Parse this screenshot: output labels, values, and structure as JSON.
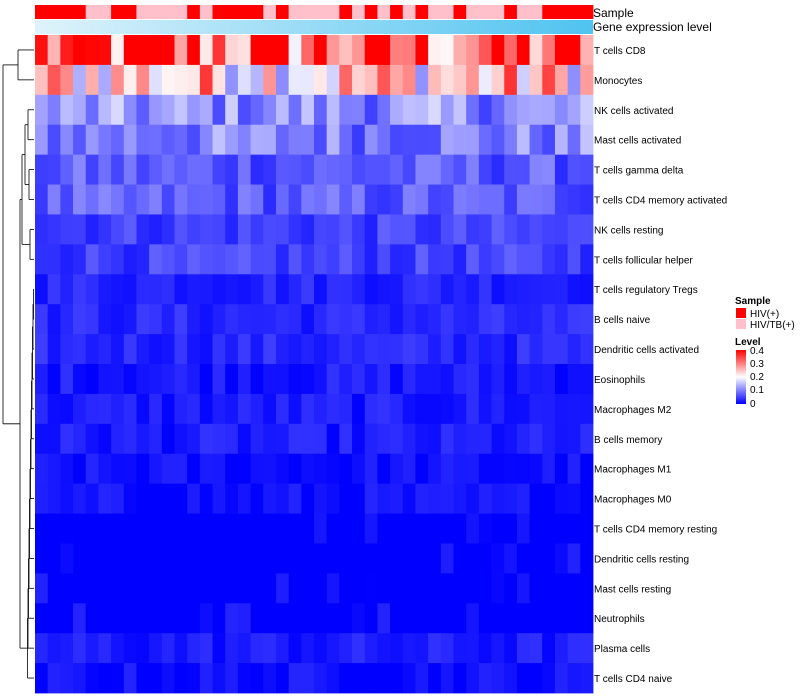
{
  "chart_data": {
    "type": "heatmap",
    "title": "",
    "column_annotations": {
      "sample_label": "Sample",
      "expression_label": "Gene expression level"
    },
    "rows": [
      "T cells CD8",
      "Monocytes",
      "NK cells activated",
      "Mast cells activated",
      "T cells gamma delta",
      "T cells CD4 memory activated",
      "NK cells resting",
      "T cells follicular helper",
      "T cells regulatory  Tregs",
      "B cells naive",
      "Dendritic cells activated",
      "Eosinophils",
      "Macrophages M2",
      "B cells memory",
      "Macrophages M1",
      "Macrophages M0",
      "T cells CD4 memory resting",
      "Dendritic cells resting",
      "Mast cells resting",
      "Neutrophils",
      "Plasma cells",
      "T cells CD4 naive"
    ],
    "row_means": [
      0.33,
      0.24,
      0.11,
      0.1,
      0.07,
      0.07,
      0.05,
      0.05,
      0.03,
      0.03,
      0.03,
      0.02,
      0.02,
      0.02,
      0.01,
      0.01,
      0.005,
      0.004,
      0.002,
      0.0,
      0.02,
      0.01
    ],
    "n_samples": 44,
    "sample_groups": [
      "HIV(+)",
      "HIV(+)",
      "HIV(+)",
      "HIV(+)",
      "HIV/TB(+)",
      "HIV/TB(+)",
      "HIV(+)",
      "HIV(+)",
      "HIV/TB(+)",
      "HIV/TB(+)",
      "HIV/TB(+)",
      "HIV/TB(+)",
      "HIV(+)",
      "HIV/TB(+)",
      "HIV(+)",
      "HIV(+)",
      "HIV(+)",
      "HIV(+)",
      "HIV/TB(+)",
      "HIV(+)",
      "HIV/TB(+)",
      "HIV/TB(+)",
      "HIV/TB(+)",
      "HIV/TB(+)",
      "HIV(+)",
      "HIV/TB(+)",
      "HIV(+)",
      "HIV/TB(+)",
      "HIV(+)",
      "HIV/TB(+)",
      "HIV(+)",
      "HIV/TB(+)",
      "HIV/TB(+)",
      "HIV(+)",
      "HIV/TB(+)",
      "HIV/TB(+)",
      "HIV/TB(+)",
      "HIV(+)",
      "HIV/TB(+)",
      "HIV/TB(+)",
      "HIV(+)",
      "HIV(+)",
      "HIV(+)",
      "HIV(+)"
    ],
    "legend": {
      "sample_title": "Sample",
      "groups": [
        {
          "label": "HIV(+)",
          "color": "#ff0000"
        },
        {
          "label": "HIV/TB(+)",
          "color": "#ffc0cb"
        }
      ],
      "level_title": "Level",
      "level_ticks": [
        "0.4",
        "0.3",
        "0.2",
        "0.1",
        "0"
      ],
      "level_range": [
        0,
        0.4
      ],
      "colors": {
        "low": "#0000ff",
        "mid": "#ffffff",
        "high": "#ff0000"
      }
    },
    "dendrogram_side": "left"
  }
}
